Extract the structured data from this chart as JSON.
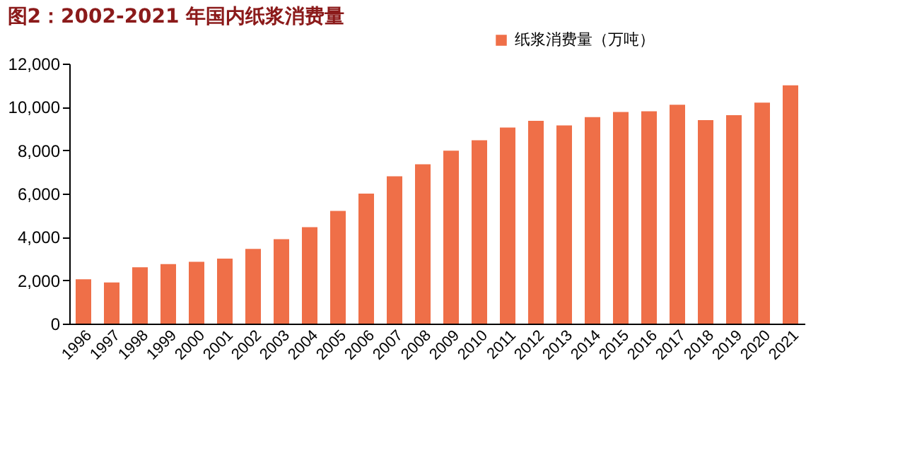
{
  "chart_data": {
    "type": "bar",
    "title": "图2：2002-2021 年国内纸浆消费量",
    "categories": [
      "1996",
      "1997",
      "1998",
      "1999",
      "2000",
      "2001",
      "2002",
      "2003",
      "2004",
      "2005",
      "2006",
      "2007",
      "2008",
      "2009",
      "2010",
      "2011",
      "2012",
      "2013",
      "2014",
      "2015",
      "2016",
      "2017",
      "2018",
      "2019",
      "2020",
      "2021"
    ],
    "series": [
      {
        "name": "纸浆消费量（万吨）",
        "color": "#ef6f48",
        "values": [
          2050,
          1900,
          2600,
          2750,
          2850,
          3000,
          3450,
          3900,
          4450,
          5200,
          6000,
          6800,
          7350,
          7980,
          8460,
          9050,
          9360,
          9150,
          9530,
          9770,
          9800,
          10100,
          9390,
          9620,
          10200,
          11000
        ]
      }
    ],
    "ylim": [
      0,
      12000
    ],
    "yticks": [
      0,
      {
        "value": 2000,
        "label": "2,000"
      },
      {
        "value": 4000,
        "label": "4,000"
      },
      {
        "value": 6000,
        "label": "6,000"
      },
      {
        "value": 8000,
        "label": "8,000"
      },
      {
        "value": 10000,
        "label": "10,000"
      },
      {
        "value": 12000,
        "label": "12,000"
      }
    ],
    "grid": false,
    "legend": "top right"
  }
}
